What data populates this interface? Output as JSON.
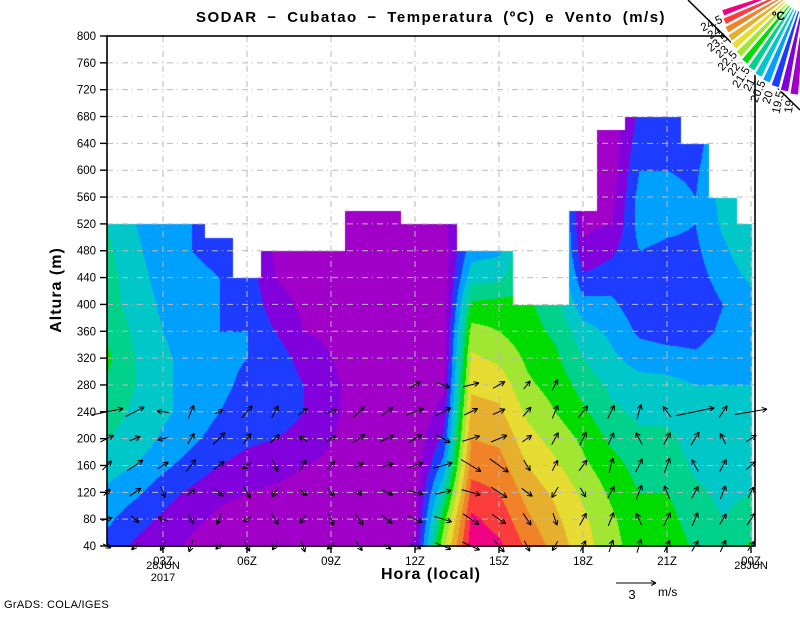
{
  "title": "SODAR  −  Cubatao  −  Temperatura (ºC) e Vento (m/s)",
  "footer": "GrADS: COLA/IGES",
  "axes": {
    "y_label": "Altura (m)",
    "x_label": "Hora (local)",
    "y_ticks": [
      800,
      760,
      720,
      680,
      640,
      600,
      560,
      520,
      480,
      440,
      400,
      360,
      320,
      280,
      240,
      200,
      160,
      120,
      80,
      40
    ],
    "x_ticks": [
      {
        "label": "03Z",
        "hour": 3
      },
      {
        "label": "06Z",
        "hour": 6
      },
      {
        "label": "09Z",
        "hour": 9
      },
      {
        "label": "12Z",
        "hour": 12
      },
      {
        "label": "15Z",
        "hour": 15
      },
      {
        "label": "18Z",
        "hour": 18
      },
      {
        "label": "21Z",
        "hour": 21
      },
      {
        "label": "00Z",
        "hour": 24
      }
    ],
    "date_left_line1": "28JUN",
    "date_left_line2": "2017",
    "date_right": "28JUN"
  },
  "legend": {
    "unit": "ºC",
    "levels_hot_to_cold": [
      "24.5",
      "24",
      "23.5",
      "23",
      "22.5",
      "22",
      "21.5",
      "21",
      "20.5",
      "20",
      "19.5",
      "19"
    ],
    "colors_hot_to_cold": [
      "#F00082",
      "#FA3C3C",
      "#F08228",
      "#E6AF2D",
      "#E6DC32",
      "#A0E632",
      "#00DC00",
      "#00D28C",
      "#00C8C8",
      "#00A0FF",
      "#1E3CFF",
      "#8200DC",
      "#A000C8"
    ]
  },
  "ref_vector": {
    "value": "3",
    "unit": "m/s",
    "speed_ms": 3
  },
  "chart_data": {
    "type": "heatmap",
    "x_hours_utc": [
      1,
      2,
      3,
      4,
      5,
      6,
      7,
      8,
      9,
      10,
      11,
      12,
      13,
      14,
      15,
      16,
      17,
      18,
      19,
      20,
      21,
      22,
      23,
      24
    ],
    "heights_m": [
      40,
      80,
      120,
      160,
      200,
      240,
      280,
      320,
      360,
      400,
      440,
      480,
      520,
      560,
      600,
      640,
      680
    ],
    "ylim": [
      40,
      800
    ],
    "temp_band_step_c": 0.5,
    "temp_levels_c": [
      19,
      19.5,
      20,
      20.5,
      21,
      21.5,
      22,
      22.5,
      23,
      23.5,
      24,
      24.5
    ],
    "ceiling_m": [
      520,
      520,
      520,
      520,
      500,
      440,
      480,
      480,
      480,
      540,
      540,
      520,
      520,
      480,
      480,
      400,
      400,
      540,
      660,
      680,
      680,
      640,
      560,
      520
    ],
    "temps_c": [
      [
        19.8,
        20.1,
        20.4,
        20.7,
        21.0,
        21.2,
        21.4,
        21.6,
        21.4,
        21.2,
        21.2,
        21.1,
        21.0,
        null,
        null,
        null,
        null
      ],
      [
        19.4,
        19.7,
        20.1,
        20.5,
        20.8,
        20.9,
        21.0,
        21.0,
        20.9,
        20.8,
        20.7,
        20.6,
        20.5,
        null,
        null,
        null,
        null
      ],
      [
        19.2,
        19.4,
        19.7,
        20.1,
        20.4,
        20.6,
        20.6,
        20.6,
        20.5,
        20.4,
        20.3,
        20.2,
        20.2,
        null,
        null,
        null,
        null
      ],
      [
        18.9,
        19.1,
        19.4,
        19.8,
        20.1,
        20.3,
        20.3,
        20.3,
        20.2,
        20.1,
        20.1,
        20.0,
        20.0,
        null,
        null,
        null,
        null
      ],
      [
        18.8,
        18.9,
        19.1,
        19.5,
        19.8,
        20.0,
        20.1,
        20.1,
        20.0,
        20.0,
        20.0,
        19.9,
        null,
        null,
        null,
        null,
        null
      ],
      [
        18.8,
        18.8,
        19.0,
        19.3,
        19.6,
        19.8,
        19.9,
        20.0,
        20.0,
        19.9,
        19.8,
        null,
        null,
        null,
        null,
        null,
        null
      ],
      [
        18.8,
        18.8,
        18.9,
        19.2,
        19.5,
        19.8,
        19.9,
        19.8,
        19.5,
        19.2,
        19.0,
        18.9,
        null,
        null,
        null,
        null,
        null
      ],
      [
        18.7,
        18.8,
        18.8,
        19.0,
        19.3,
        19.5,
        19.5,
        19.3,
        19.0,
        18.9,
        18.8,
        18.8,
        null,
        null,
        null,
        null,
        null
      ],
      [
        18.7,
        18.7,
        18.8,
        18.9,
        19.0,
        19.1,
        19.1,
        19.0,
        18.9,
        18.8,
        18.8,
        18.7,
        null,
        null,
        null,
        null,
        null
      ],
      [
        18.6,
        18.6,
        18.7,
        18.7,
        18.8,
        18.8,
        18.8,
        18.8,
        18.7,
        18.7,
        18.7,
        18.6,
        18.6,
        null,
        null,
        null,
        null
      ],
      [
        18.6,
        18.6,
        18.6,
        18.6,
        18.7,
        18.7,
        18.7,
        18.7,
        18.6,
        18.6,
        18.6,
        18.6,
        18.6,
        null,
        null,
        null,
        null
      ],
      [
        19.1,
        18.9,
        18.8,
        18.7,
        18.7,
        18.6,
        18.6,
        18.6,
        18.6,
        18.6,
        18.6,
        18.6,
        18.7,
        null,
        null,
        null,
        null
      ],
      [
        22.4,
        21.8,
        21.0,
        20.2,
        19.6,
        19.2,
        18.9,
        18.8,
        18.7,
        18.7,
        18.7,
        18.7,
        18.8,
        null,
        null,
        null,
        null
      ],
      [
        24.8,
        24.6,
        24.2,
        23.8,
        23.5,
        23.2,
        22.9,
        22.6,
        22.2,
        21.6,
        20.8,
        20.3,
        null,
        null,
        null,
        null,
        null
      ],
      [
        24.6,
        24.3,
        24.0,
        23.7,
        23.4,
        23.1,
        22.8,
        22.4,
        22.0,
        21.7,
        20.9,
        20.4,
        null,
        null,
        null,
        null,
        null
      ],
      [
        23.9,
        23.6,
        23.3,
        23.0,
        22.7,
        22.4,
        22.1,
        21.9,
        21.7,
        21.6,
        null,
        null,
        null,
        null,
        null,
        null,
        null
      ],
      [
        23.3,
        23.1,
        22.9,
        22.6,
        22.3,
        22.0,
        21.8,
        21.6,
        21.4,
        21.2,
        null,
        null,
        null,
        null,
        null,
        null,
        null
      ],
      [
        22.7,
        22.6,
        22.4,
        22.1,
        21.9,
        21.6,
        21.3,
        21.0,
        20.7,
        20.2,
        19.6,
        19.1,
        18.9,
        null,
        null,
        null,
        null
      ],
      [
        22.2,
        22.1,
        21.9,
        21.7,
        21.4,
        21.1,
        20.9,
        20.6,
        20.4,
        20.1,
        19.8,
        19.4,
        19.0,
        18.8,
        18.7,
        18.7,
        null
      ],
      [
        21.7,
        21.6,
        21.5,
        21.3,
        21.1,
        20.9,
        20.7,
        20.3,
        19.9,
        19.7,
        19.8,
        20.0,
        20.2,
        20.2,
        20.0,
        19.8,
        19.6
      ],
      [
        21.9,
        21.7,
        21.5,
        21.3,
        21.1,
        20.9,
        20.7,
        20.2,
        19.8,
        19.6,
        19.7,
        19.9,
        20.1,
        20.2,
        20.0,
        19.8,
        19.6
      ],
      [
        21.4,
        21.2,
        21.1,
        20.9,
        20.8,
        20.7,
        20.5,
        20.1,
        19.8,
        19.7,
        19.8,
        19.9,
        20.0,
        20.0,
        19.9,
        19.7,
        null
      ],
      [
        21.1,
        21.0,
        20.9,
        20.8,
        20.7,
        20.6,
        20.5,
        20.3,
        20.1,
        20.0,
        20.2,
        20.4,
        20.6,
        20.7,
        null,
        null,
        null
      ],
      [
        21.6,
        21.2,
        21.0,
        20.8,
        20.7,
        20.6,
        20.5,
        20.4,
        20.3,
        20.3,
        20.6,
        20.9,
        21.0,
        null,
        null,
        null,
        null
      ]
    ],
    "wind_ms": [
      [
        1,
        40,
        0.6,
        -0.3
      ],
      [
        1,
        80,
        0.8,
        0.2
      ],
      [
        1,
        120,
        0.5,
        0.5
      ],
      [
        1,
        160,
        0.7,
        0.7
      ],
      [
        1,
        200,
        1.0,
        0.5
      ],
      [
        1,
        240,
        2.4,
        0.5
      ],
      [
        2,
        40,
        -0.5,
        -0.6
      ],
      [
        2,
        80,
        0.6,
        -0.5
      ],
      [
        2,
        120,
        0.9,
        0.6
      ],
      [
        2,
        160,
        1.2,
        0.8
      ],
      [
        2,
        200,
        0.8,
        0.3
      ],
      [
        2,
        240,
        1.4,
        0.7
      ],
      [
        3,
        40,
        -0.4,
        -0.7
      ],
      [
        3,
        80,
        -0.7,
        0.3
      ],
      [
        3,
        120,
        0.3,
        -0.8
      ],
      [
        3,
        160,
        0.8,
        0.5
      ],
      [
        3,
        200,
        -0.8,
        -0.2
      ],
      [
        3,
        240,
        -0.9,
        0.1
      ],
      [
        4,
        40,
        -0.3,
        -0.9
      ],
      [
        4,
        80,
        0.4,
        -0.7
      ],
      [
        4,
        120,
        0.6,
        0.5
      ],
      [
        4,
        160,
        0.7,
        0.9
      ],
      [
        4,
        200,
        0.5,
        0.8
      ],
      [
        4,
        240,
        0.4,
        1.0
      ],
      [
        5,
        40,
        -0.5,
        -0.5
      ],
      [
        5,
        80,
        -0.3,
        -0.8
      ],
      [
        5,
        120,
        0.6,
        -0.6
      ],
      [
        5,
        160,
        0.8,
        0.6
      ],
      [
        5,
        200,
        0.9,
        0.9
      ],
      [
        5,
        240,
        0.6,
        0.3
      ],
      [
        6,
        40,
        0.4,
        -0.8
      ],
      [
        6,
        80,
        -0.6,
        -0.4
      ],
      [
        6,
        120,
        0.5,
        -0.9
      ],
      [
        6,
        160,
        -0.7,
        -0.5
      ],
      [
        6,
        200,
        0.6,
        0.8
      ],
      [
        6,
        240,
        0.8,
        0.9
      ],
      [
        7,
        40,
        -0.4,
        -0.6
      ],
      [
        7,
        80,
        0.5,
        -0.8
      ],
      [
        7,
        120,
        -0.5,
        -0.7
      ],
      [
        7,
        160,
        0.4,
        -0.9
      ],
      [
        7,
        200,
        0.7,
        0.6
      ],
      [
        7,
        240,
        0.5,
        0.9
      ],
      [
        8,
        40,
        0.3,
        -0.9
      ],
      [
        8,
        80,
        -0.5,
        -0.6
      ],
      [
        8,
        120,
        0.6,
        -0.5
      ],
      [
        8,
        160,
        0.5,
        0.8
      ],
      [
        8,
        200,
        -0.6,
        0.4
      ],
      [
        8,
        240,
        0.7,
        0.5
      ],
      [
        9,
        40,
        -0.6,
        -0.5
      ],
      [
        9,
        80,
        0.4,
        -0.9
      ],
      [
        9,
        120,
        0.5,
        -0.6
      ],
      [
        9,
        160,
        0.6,
        0.7
      ],
      [
        9,
        200,
        0.8,
        0.5
      ],
      [
        9,
        240,
        0.9,
        0.3
      ],
      [
        10,
        40,
        0.5,
        -0.7
      ],
      [
        10,
        80,
        0.6,
        -0.9
      ],
      [
        10,
        120,
        0.4,
        -0.5
      ],
      [
        10,
        160,
        0.7,
        0.4
      ],
      [
        10,
        200,
        0.9,
        0.6
      ],
      [
        10,
        240,
        0.8,
        0.8
      ],
      [
        11,
        40,
        0.6,
        -0.5
      ],
      [
        11,
        80,
        0.8,
        -0.6
      ],
      [
        11,
        120,
        0.9,
        -0.4
      ],
      [
        11,
        160,
        1.0,
        0.3
      ],
      [
        11,
        200,
        1.1,
        0.5
      ],
      [
        11,
        240,
        0.9,
        0.7
      ],
      [
        12,
        40,
        0.9,
        -0.4
      ],
      [
        12,
        80,
        1.1,
        -0.5
      ],
      [
        12,
        120,
        1.2,
        -0.3
      ],
      [
        12,
        160,
        1.2,
        0.4
      ],
      [
        12,
        200,
        1.0,
        0.6
      ],
      [
        12,
        240,
        1.3,
        0.5
      ],
      [
        12,
        280,
        0.8,
        0.5
      ],
      [
        13,
        40,
        1.2,
        -0.5
      ],
      [
        13,
        80,
        1.3,
        -0.4
      ],
      [
        13,
        120,
        1.2,
        0.3
      ],
      [
        13,
        160,
        1.4,
        0.4
      ],
      [
        13,
        200,
        1.1,
        -0.6
      ],
      [
        13,
        240,
        1.2,
        0.6
      ],
      [
        13,
        280,
        1.0,
        -0.4
      ],
      [
        14,
        40,
        1.3,
        -0.6
      ],
      [
        14,
        80,
        1.2,
        -0.8
      ],
      [
        14,
        120,
        1.4,
        -0.4
      ],
      [
        14,
        160,
        1.5,
        -0.9
      ],
      [
        14,
        200,
        1.3,
        0.4
      ],
      [
        14,
        240,
        1.0,
        0.5
      ],
      [
        14,
        280,
        1.2,
        0.3
      ],
      [
        15,
        40,
        0.8,
        -0.9
      ],
      [
        15,
        80,
        1.0,
        -0.7
      ],
      [
        15,
        120,
        1.2,
        -0.8
      ],
      [
        15,
        160,
        1.4,
        -1.0
      ],
      [
        15,
        200,
        1.2,
        0.5
      ],
      [
        15,
        240,
        0.9,
        0.4
      ],
      [
        15,
        280,
        0.9,
        0.5
      ],
      [
        16,
        40,
        0.4,
        -0.8
      ],
      [
        16,
        80,
        0.6,
        -0.9
      ],
      [
        16,
        120,
        0.8,
        -0.6
      ],
      [
        16,
        160,
        0.5,
        -0.8
      ],
      [
        16,
        200,
        0.7,
        0.5
      ],
      [
        16,
        240,
        0.6,
        0.7
      ],
      [
        16,
        280,
        0.5,
        0.6
      ],
      [
        17,
        40,
        -0.4,
        -0.7
      ],
      [
        17,
        80,
        0.3,
        -0.9
      ],
      [
        17,
        120,
        -0.5,
        -0.8
      ],
      [
        17,
        160,
        0.4,
        0.8
      ],
      [
        17,
        200,
        0.5,
        0.9
      ],
      [
        17,
        240,
        0.4,
        1.0
      ],
      [
        17,
        280,
        0.4,
        0.8
      ],
      [
        18,
        40,
        0.4,
        0.8
      ],
      [
        18,
        80,
        0.5,
        0.9
      ],
      [
        18,
        120,
        0.4,
        -0.7
      ],
      [
        18,
        160,
        0.6,
        0.8
      ],
      [
        18,
        200,
        0.5,
        1.0
      ],
      [
        18,
        240,
        0.7,
        0.9
      ],
      [
        19,
        40,
        0.3,
        0.9
      ],
      [
        19,
        80,
        0.4,
        1.0
      ],
      [
        19,
        120,
        0.5,
        0.9
      ],
      [
        19,
        160,
        0.3,
        1.1
      ],
      [
        19,
        200,
        0.4,
        0.9
      ],
      [
        19,
        240,
        0.5,
        1.0
      ],
      [
        20,
        40,
        0.3,
        1.0
      ],
      [
        20,
        80,
        -0.4,
        0.9
      ],
      [
        20,
        120,
        0.4,
        1.1
      ],
      [
        20,
        160,
        0.5,
        1.0
      ],
      [
        20,
        200,
        -0.5,
        0.9
      ],
      [
        20,
        240,
        0.3,
        1.1
      ],
      [
        21,
        40,
        0.4,
        0.9
      ],
      [
        21,
        80,
        0.5,
        1.0
      ],
      [
        21,
        120,
        -0.4,
        1.0
      ],
      [
        21,
        160,
        0.4,
        1.1
      ],
      [
        21,
        200,
        0.5,
        0.9
      ],
      [
        21,
        240,
        -0.6,
        0.8
      ],
      [
        22,
        40,
        0.5,
        0.8
      ],
      [
        22,
        80,
        0.4,
        1.0
      ],
      [
        22,
        120,
        0.5,
        0.9
      ],
      [
        22,
        160,
        -0.5,
        0.9
      ],
      [
        22,
        200,
        0.6,
        1.0
      ],
      [
        22,
        240,
        2.9,
        0.6
      ],
      [
        23,
        40,
        0.4,
        0.9
      ],
      [
        23,
        80,
        0.5,
        0.8
      ],
      [
        23,
        120,
        0.4,
        1.0
      ],
      [
        23,
        160,
        0.5,
        0.9
      ],
      [
        23,
        200,
        -0.4,
        0.8
      ],
      [
        23,
        240,
        0.6,
        0.9
      ],
      [
        24,
        40,
        0.5,
        0.7
      ],
      [
        24,
        80,
        0.6,
        0.9
      ],
      [
        24,
        120,
        0.4,
        0.8
      ],
      [
        24,
        160,
        0.7,
        0.6
      ],
      [
        24,
        200,
        0.8,
        0.5
      ],
      [
        24,
        240,
        2.4,
        0.4
      ]
    ]
  }
}
